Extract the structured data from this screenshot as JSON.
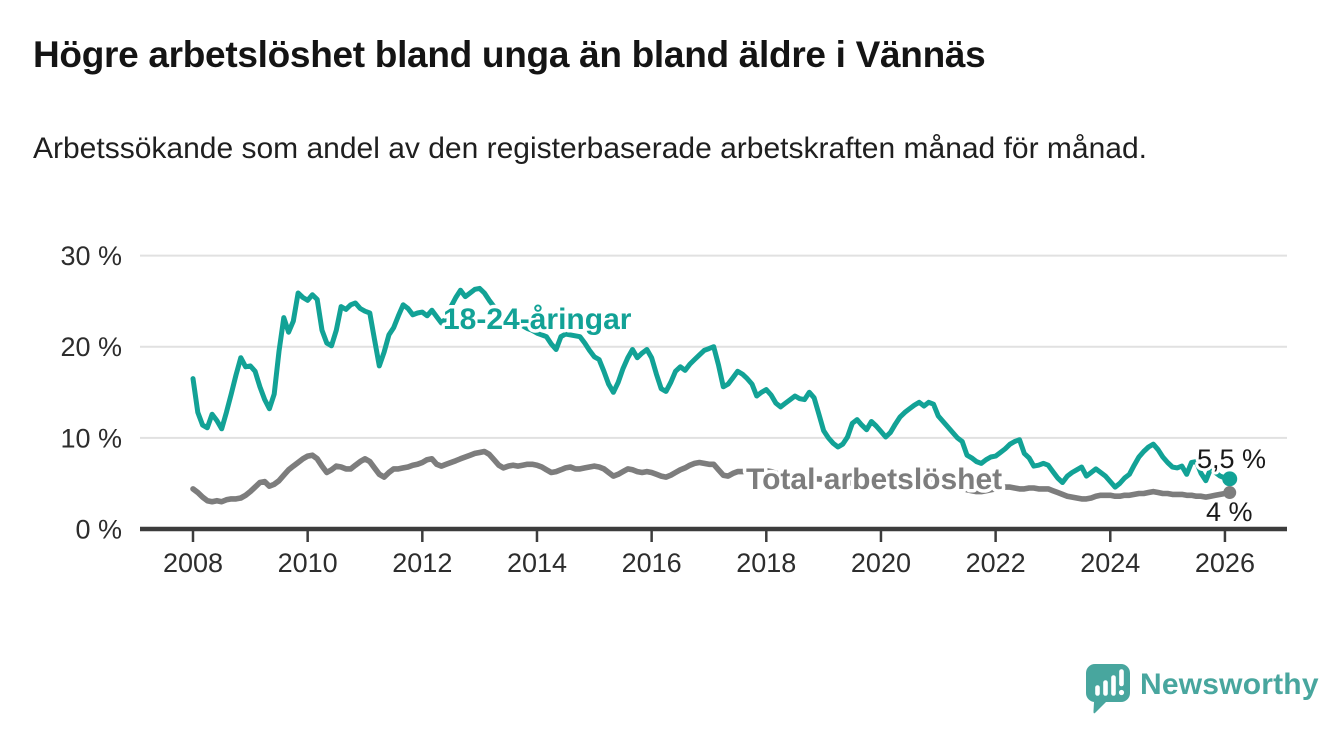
{
  "header": {
    "title": "Högre arbetslöshet bland unga än bland äldre i Vännäs",
    "subtitle": "Arbetssökande som andel av den registerbaserade arbetskraften månad för månad."
  },
  "footer": {
    "brand": "Newsworthy"
  },
  "colors": {
    "accent_teal": "#12a296",
    "line_gray": "#7d7d7d",
    "brand_teal": "#48a69e",
    "grid": "#e1e1e1",
    "axis": "#3c3c3c",
    "tick_text": "#2d2d2d",
    "annotation_text": "#1a1a1a",
    "background": "#ffffff"
  },
  "chart_data": {
    "type": "line",
    "title": "Högre arbetslöshet bland unga än bland äldre i Vännäs",
    "subtitle": "Arbetssökande som andel av den registerbaserade arbetskraften månad för månad.",
    "x_unit": "month",
    "x_start": "2008-01",
    "x_end": "2026-02",
    "ylim": [
      0,
      30
    ],
    "grid": true,
    "legend_position": "inline-labels",
    "y_ticks": [
      {
        "value": 0,
        "label": "0 %"
      },
      {
        "value": 10,
        "label": "10 %"
      },
      {
        "value": 20,
        "label": "20 %"
      },
      {
        "value": 30,
        "label": "30 %"
      }
    ],
    "x_ticks": [
      {
        "year": 2008,
        "label": "2008"
      },
      {
        "year": 2010,
        "label": "2010"
      },
      {
        "year": 2012,
        "label": "2012"
      },
      {
        "year": 2014,
        "label": "2014"
      },
      {
        "year": 2016,
        "label": "2016"
      },
      {
        "year": 2018,
        "label": "2018"
      },
      {
        "year": 2020,
        "label": "2020"
      },
      {
        "year": 2022,
        "label": "2022"
      },
      {
        "year": 2024,
        "label": "2024"
      },
      {
        "year": 2026,
        "label": "2026"
      }
    ],
    "series": [
      {
        "name": "18-24-åringar",
        "color": "#12a296",
        "end_value": 5.5,
        "end_value_label": "5,5 %",
        "values": [
          16.5,
          12.8,
          11.4,
          11.1,
          12.6,
          11.9,
          11.0,
          12.8,
          14.8,
          16.9,
          18.8,
          17.8,
          17.9,
          17.3,
          15.6,
          14.2,
          13.2,
          14.8,
          19.5,
          23.2,
          21.6,
          22.8,
          25.9,
          25.4,
          25.1,
          25.7,
          25.2,
          21.8,
          20.4,
          20.1,
          21.8,
          24.4,
          24.1,
          24.6,
          24.8,
          24.2,
          23.9,
          23.7,
          20.8,
          17.9,
          19.4,
          21.3,
          22.1,
          23.4,
          24.6,
          24.2,
          23.5,
          23.7,
          23.8,
          23.4,
          24.0,
          23.3,
          22.6,
          23.1,
          24.4,
          25.4,
          26.2,
          25.5,
          25.9,
          26.3,
          26.4,
          25.9,
          25.1,
          24.4,
          23.7,
          23.1,
          23.4,
          23.0,
          22.6,
          22.3,
          22.0,
          21.8,
          21.5,
          21.3,
          21.1,
          20.3,
          19.7,
          21.1,
          21.4,
          21.3,
          21.2,
          21.1,
          20.4,
          19.6,
          18.9,
          18.6,
          17.3,
          15.9,
          15.0,
          16.1,
          17.6,
          18.8,
          19.7,
          18.8,
          19.3,
          19.7,
          18.8,
          17.0,
          15.4,
          15.1,
          16.1,
          17.3,
          17.8,
          17.4,
          18.1,
          18.6,
          19.1,
          19.6,
          19.8,
          20.0,
          18.0,
          15.6,
          15.9,
          16.6,
          17.3,
          17.0,
          16.5,
          15.9,
          14.6,
          15.0,
          15.3,
          14.7,
          13.8,
          13.4,
          13.8,
          14.2,
          14.6,
          14.3,
          14.2,
          15.0,
          14.4,
          12.6,
          10.8,
          10.0,
          9.4,
          9.0,
          9.3,
          10.1,
          11.6,
          12.0,
          11.4,
          10.9,
          11.8,
          11.3,
          10.7,
          10.1,
          10.6,
          11.5,
          12.3,
          12.8,
          13.2,
          13.6,
          13.9,
          13.5,
          13.9,
          13.7,
          12.4,
          11.8,
          11.2,
          10.6,
          10.0,
          9.6,
          8.1,
          7.8,
          7.4,
          7.2,
          7.6,
          7.9,
          8.0,
          8.4,
          8.8,
          9.3,
          9.6,
          9.8,
          8.3,
          7.8,
          6.9,
          7.0,
          7.2,
          7.0,
          6.3,
          5.6,
          5.1,
          5.8,
          6.2,
          6.5,
          6.8,
          5.8,
          6.2,
          6.6,
          6.2,
          5.8,
          5.2,
          4.6,
          5.0,
          5.6,
          6.0,
          7.0,
          7.9,
          8.5,
          9.0,
          9.3,
          8.7,
          7.9,
          7.3,
          6.8,
          6.7,
          6.9,
          6.0,
          7.3,
          7.4,
          6.1,
          5.3,
          6.6,
          6.2,
          5.8,
          5.6,
          5.5
        ]
      },
      {
        "name": "Total arbetslöshet",
        "color": "#7d7d7d",
        "end_value": 4.0,
        "end_value_label": "4 %",
        "values": [
          4.4,
          4.0,
          3.5,
          3.1,
          3.0,
          3.1,
          3.0,
          3.2,
          3.3,
          3.3,
          3.4,
          3.7,
          4.1,
          4.6,
          5.1,
          5.2,
          4.7,
          4.9,
          5.3,
          5.9,
          6.5,
          6.9,
          7.3,
          7.7,
          8.0,
          8.1,
          7.7,
          6.9,
          6.2,
          6.5,
          6.9,
          6.8,
          6.6,
          6.6,
          7.0,
          7.4,
          7.7,
          7.4,
          6.7,
          6.0,
          5.7,
          6.2,
          6.6,
          6.6,
          6.7,
          6.8,
          7.0,
          7.1,
          7.3,
          7.6,
          7.7,
          7.1,
          6.9,
          7.1,
          7.3,
          7.5,
          7.7,
          7.9,
          8.1,
          8.3,
          8.4,
          8.5,
          8.2,
          7.6,
          7.0,
          6.7,
          6.9,
          7.0,
          6.9,
          7.0,
          7.1,
          7.1,
          7.0,
          6.8,
          6.5,
          6.2,
          6.3,
          6.5,
          6.7,
          6.8,
          6.6,
          6.6,
          6.7,
          6.8,
          6.9,
          6.8,
          6.6,
          6.2,
          5.8,
          6.0,
          6.3,
          6.6,
          6.5,
          6.3,
          6.2,
          6.3,
          6.2,
          6.0,
          5.8,
          5.7,
          5.9,
          6.2,
          6.5,
          6.7,
          7.0,
          7.2,
          7.3,
          7.2,
          7.1,
          7.1,
          6.5,
          5.9,
          5.8,
          6.1,
          6.3,
          6.3,
          6.4,
          6.4,
          6.5,
          6.5,
          6.4,
          6.3,
          6.1,
          6.0,
          5.9,
          5.9,
          5.8,
          5.7,
          5.6,
          5.6,
          5.5,
          5.5,
          5.4,
          5.3,
          5.2,
          5.1,
          5.0,
          5.0,
          5.1,
          5.1,
          5.0,
          4.9,
          4.9,
          4.9,
          4.9,
          4.9,
          5.1,
          5.5,
          5.8,
          5.9,
          5.9,
          5.8,
          5.7,
          5.6,
          5.5,
          5.5,
          5.4,
          5.3,
          5.1,
          4.9,
          4.7,
          4.5,
          4.3,
          4.2,
          4.1,
          4.1,
          4.2,
          4.3,
          4.4,
          4.5,
          4.6,
          4.6,
          4.5,
          4.4,
          4.4,
          4.5,
          4.5,
          4.4,
          4.4,
          4.4,
          4.2,
          4.0,
          3.8,
          3.6,
          3.5,
          3.4,
          3.3,
          3.3,
          3.4,
          3.6,
          3.7,
          3.7,
          3.7,
          3.6,
          3.6,
          3.7,
          3.7,
          3.8,
          3.9,
          3.9,
          4.0,
          4.1,
          4.0,
          3.9,
          3.9,
          3.8,
          3.8,
          3.8,
          3.7,
          3.7,
          3.6,
          3.6,
          3.5,
          3.6,
          3.7,
          3.8,
          3.9,
          4.0
        ]
      }
    ]
  }
}
